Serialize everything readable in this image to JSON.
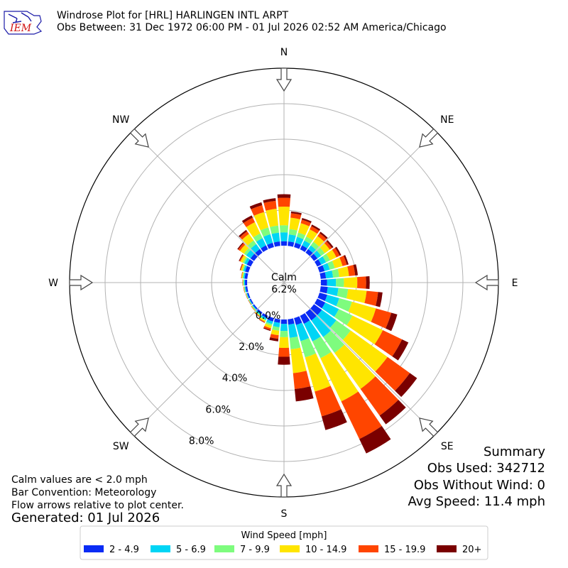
{
  "header": {
    "logo_text": "IEM",
    "title": "Windrose Plot for [HRL] HARLINGEN INTL ARPT",
    "subtitle": "Obs Between: 31 Dec 1972 06:00 PM - 01 Jul 2026 02:52 AM America/Chicago"
  },
  "summary": {
    "title": "Summary",
    "obs_used": "Obs Used: 342712",
    "obs_without_wind": "Obs Without Wind: 0",
    "avg_speed": "Avg Speed: 11.4 mph"
  },
  "notes": {
    "calm_note": "Calm values are < 2.0 mph",
    "bar_convention": "Bar Convention: Meteorology",
    "flow_arrows": "Flow arrows relative to plot center.",
    "generated": "Generated: 01 Jul 2026"
  },
  "colors": [
    "#0a2cf5",
    "#00d5f5",
    "#7efc7e",
    "#ffe500",
    "#ff4500",
    "#7a0000"
  ],
  "chart_data": {
    "type": "windrose",
    "calm_label": "Calm",
    "calm_value": "6.2%",
    "calm_percent": 6.2,
    "direction_labels": [
      "N",
      "NE",
      "E",
      "SE",
      "S",
      "SW",
      "W",
      "NW"
    ],
    "radial_ticks": [
      {
        "value": 0,
        "label": "0.0%"
      },
      {
        "value": 2,
        "label": "2.0%"
      },
      {
        "value": 4,
        "label": "4.0%"
      },
      {
        "value": 6,
        "label": "6.0%"
      },
      {
        "value": 8,
        "label": "8.0%"
      }
    ],
    "rmax": 10,
    "legend": {
      "title": "Wind Speed [mph]",
      "labels": [
        "2 - 4.9",
        "5 - 6.9",
        "7 - 9.9",
        "10 - 14.9",
        "15 - 19.9",
        "20+"
      ]
    },
    "directions_deg": [
      0,
      10,
      20,
      30,
      40,
      50,
      60,
      70,
      80,
      90,
      100,
      110,
      120,
      130,
      140,
      150,
      160,
      170,
      180,
      190,
      200,
      210,
      220,
      230,
      240,
      250,
      260,
      270,
      280,
      290,
      300,
      310,
      320,
      330,
      340,
      350
    ],
    "frequency_cumulative_percent": [
      [
        0.25,
        0.75,
        1.15,
        2.2,
        2.7,
        2.9
      ],
      [
        0.25,
        0.65,
        0.95,
        1.6,
        1.85,
        1.95
      ],
      [
        0.25,
        0.6,
        0.85,
        1.4,
        1.6,
        1.7
      ],
      [
        0.25,
        0.55,
        0.8,
        1.25,
        1.45,
        1.55
      ],
      [
        0.25,
        0.5,
        0.75,
        1.15,
        1.35,
        1.45
      ],
      [
        0.25,
        0.5,
        0.75,
        1.1,
        1.25,
        1.35
      ],
      [
        0.25,
        0.55,
        0.8,
        1.2,
        1.4,
        1.5
      ],
      [
        0.3,
        0.6,
        0.9,
        1.35,
        1.6,
        1.7
      ],
      [
        0.3,
        0.7,
        1.05,
        1.6,
        1.95,
        2.1
      ],
      [
        0.35,
        0.85,
        1.3,
        2.05,
        2.55,
        2.75
      ],
      [
        0.4,
        1.0,
        1.55,
        2.6,
        3.25,
        3.5
      ],
      [
        0.45,
        1.15,
        1.9,
        3.3,
        4.2,
        4.55
      ],
      [
        0.5,
        1.35,
        2.2,
        4.1,
        5.3,
        5.7
      ],
      [
        0.55,
        1.55,
        2.55,
        5.1,
        6.65,
        7.15
      ],
      [
        0.55,
        1.7,
        2.8,
        5.3,
        7.15,
        7.75
      ],
      [
        0.5,
        1.6,
        2.65,
        5.35,
        7.7,
        8.6
      ],
      [
        0.4,
        1.35,
        2.3,
        4.3,
        5.75,
        6.55
      ],
      [
        0.3,
        1.05,
        1.7,
        3.05,
        3.95,
        4.65
      ],
      [
        0.25,
        0.65,
        1.0,
        1.6,
        2.1,
        2.55
      ],
      [
        0.2,
        0.45,
        0.65,
        0.9,
        1.1,
        1.25
      ],
      [
        0.2,
        0.35,
        0.45,
        0.6,
        0.7,
        0.75
      ],
      [
        0.15,
        0.25,
        0.3,
        0.38,
        0.42,
        0.44
      ],
      [
        0.1,
        0.18,
        0.22,
        0.26,
        0.28,
        0.3
      ],
      [
        0.08,
        0.13,
        0.16,
        0.19,
        0.2,
        0.21
      ],
      [
        0.07,
        0.11,
        0.13,
        0.15,
        0.16,
        0.17
      ],
      [
        0.08,
        0.12,
        0.14,
        0.16,
        0.17,
        0.18
      ],
      [
        0.1,
        0.15,
        0.18,
        0.2,
        0.21,
        0.22
      ],
      [
        0.12,
        0.18,
        0.21,
        0.24,
        0.25,
        0.26
      ],
      [
        0.15,
        0.22,
        0.27,
        0.32,
        0.34,
        0.35
      ],
      [
        0.2,
        0.3,
        0.36,
        0.45,
        0.49,
        0.51
      ],
      [
        0.25,
        0.4,
        0.5,
        0.65,
        0.71,
        0.75
      ],
      [
        0.25,
        0.55,
        0.7,
        0.98,
        1.1,
        1.16
      ],
      [
        0.25,
        0.6,
        0.85,
        1.3,
        1.48,
        1.58
      ],
      [
        0.25,
        0.7,
        1.0,
        1.7,
        1.98,
        2.12
      ],
      [
        0.25,
        0.75,
        1.15,
        2.05,
        2.45,
        2.62
      ],
      [
        0.25,
        0.75,
        1.15,
        2.1,
        2.55,
        2.7
      ]
    ]
  }
}
